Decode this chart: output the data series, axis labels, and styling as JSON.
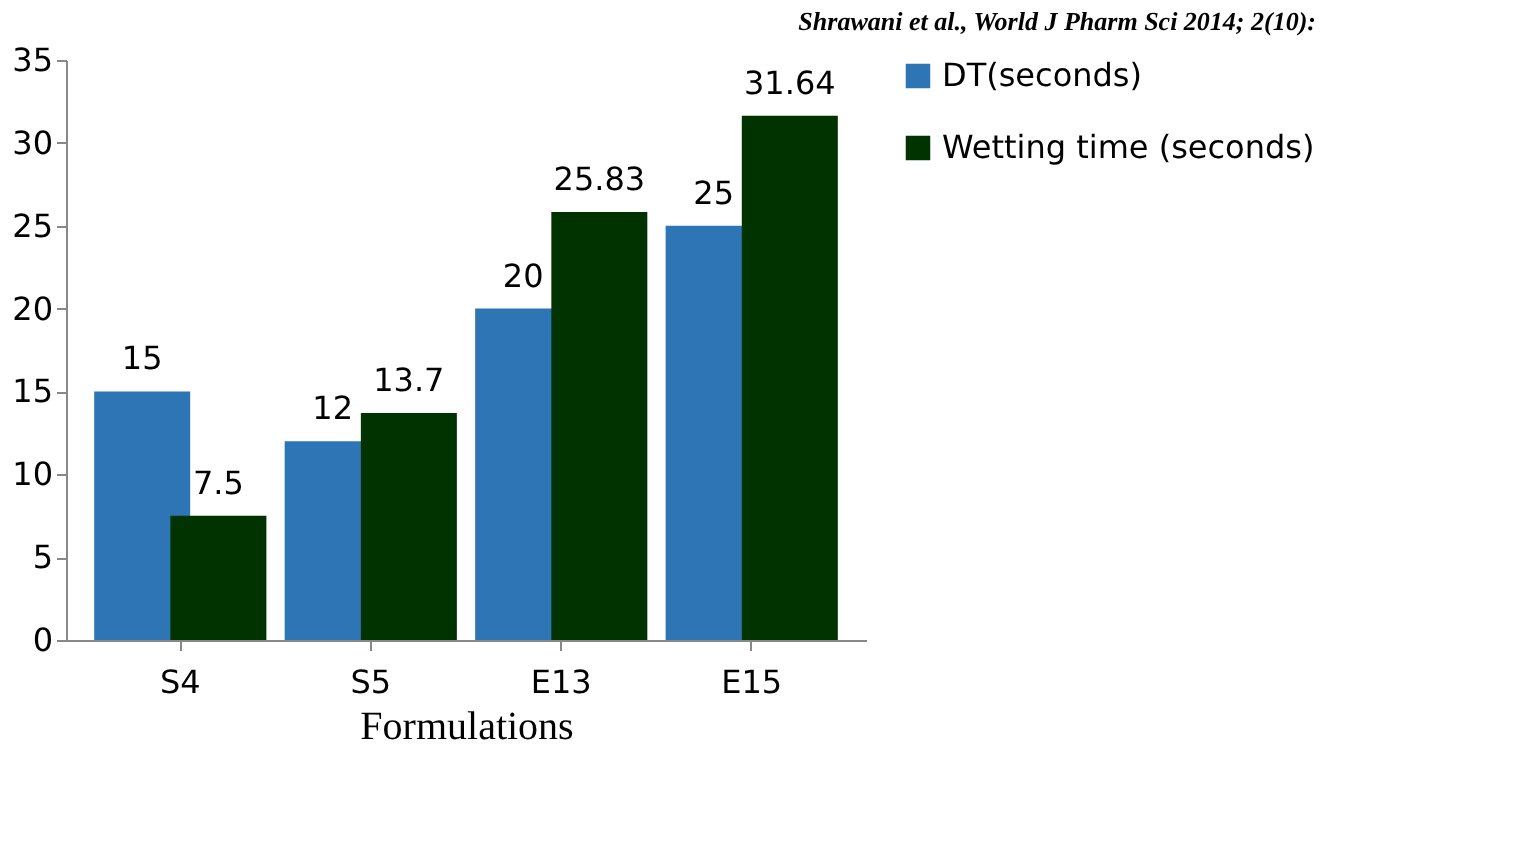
{
  "chart_data": {
    "type": "bar",
    "xlabel": "Formulations",
    "categories": [
      "S4",
      "S5",
      "E13",
      "E15"
    ],
    "series": [
      {
        "name": "DT(seconds)",
        "color": "#2e75b6",
        "values": [
          15,
          12,
          20,
          25
        ]
      },
      {
        "name": "Wetting time (seconds)",
        "color": "#003300",
        "values": [
          7.5,
          13.7,
          25.83,
          31.64
        ]
      }
    ],
    "ylim": [
      0,
      35
    ],
    "yticks": [
      0,
      5,
      10,
      15,
      20,
      25,
      30,
      35
    ],
    "grid": false,
    "legend": "right",
    "data_labels": true,
    "annotations": [
      "Shrawani et al., World J Pharm Sci 2014; 2(10):"
    ]
  }
}
